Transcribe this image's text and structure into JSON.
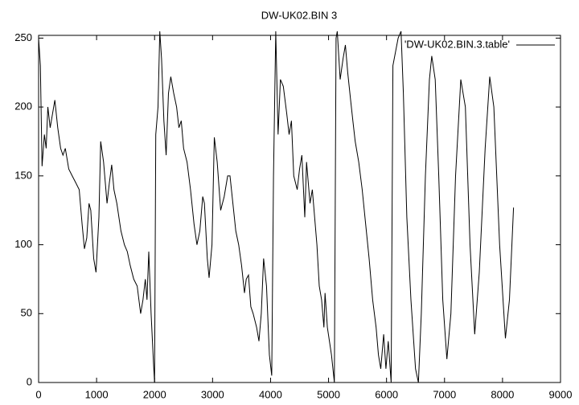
{
  "chart_data": {
    "type": "line",
    "title": "DW-UK02.BIN 3",
    "series": [
      {
        "name": "'DW-UK02.BIN.3.table'",
        "color": "#000000",
        "x": [
          0,
          30,
          60,
          100,
          130,
          160,
          200,
          280,
          330,
          380,
          420,
          460,
          520,
          580,
          640,
          700,
          750,
          790,
          830,
          870,
          900,
          950,
          990,
          1040,
          1070,
          1120,
          1180,
          1220,
          1260,
          1300,
          1350,
          1420,
          1480,
          1530,
          1580,
          1640,
          1700,
          1760,
          1800,
          1840,
          1870,
          1900,
          1940,
          1980,
          2000,
          2020,
          2060,
          2090,
          2120,
          2160,
          2200,
          2240,
          2280,
          2330,
          2380,
          2420,
          2460,
          2500,
          2560,
          2620,
          2680,
          2730,
          2780,
          2830,
          2860,
          2910,
          2940,
          2990,
          3030,
          3080,
          3140,
          3200,
          3260,
          3300,
          3350,
          3400,
          3450,
          3500,
          3550,
          3580,
          3620,
          3660,
          3700,
          3760,
          3800,
          3840,
          3880,
          3930,
          3980,
          4020,
          4050,
          4090,
          4130,
          4170,
          4220,
          4280,
          4320,
          4360,
          4400,
          4460,
          4500,
          4540,
          4590,
          4620,
          4680,
          4720,
          4800,
          4840,
          4880,
          4920,
          4940,
          4980,
          5050,
          5100,
          5130,
          5150,
          5200,
          5250,
          5290,
          5330,
          5380,
          5420,
          5460,
          5520,
          5580,
          5640,
          5700,
          5760,
          5820,
          5860,
          5900,
          5950,
          5990,
          6030,
          6080,
          6110,
          6200,
          6250,
          6290,
          6350,
          6420,
          6500,
          6550,
          6600,
          6670,
          6740,
          6780,
          6840,
          6900,
          6970,
          7040,
          7110,
          7190,
          7280,
          7360,
          7440,
          7520,
          7600,
          7700,
          7780,
          7850,
          7950,
          8050,
          8120,
          8190
        ],
        "values": [
          250,
          230,
          157,
          180,
          170,
          200,
          185,
          205,
          185,
          170,
          165,
          170,
          155,
          150,
          145,
          140,
          115,
          97,
          105,
          130,
          125,
          90,
          80,
          120,
          175,
          160,
          130,
          145,
          158,
          140,
          130,
          110,
          100,
          95,
          85,
          75,
          70,
          50,
          60,
          75,
          60,
          95,
          50,
          15,
          0,
          180,
          200,
          255,
          235,
          190,
          165,
          210,
          222,
          210,
          200,
          185,
          190,
          170,
          160,
          140,
          115,
          100,
          110,
          135,
          130,
          90,
          76,
          100,
          178,
          160,
          125,
          135,
          150,
          150,
          130,
          110,
          100,
          85,
          65,
          75,
          78,
          55,
          50,
          40,
          30,
          50,
          90,
          70,
          20,
          5,
          150,
          255,
          180,
          220,
          215,
          195,
          180,
          190,
          150,
          140,
          155,
          165,
          120,
          160,
          130,
          140,
          100,
          70,
          60,
          40,
          65,
          40,
          20,
          0,
          250,
          255,
          220,
          235,
          245,
          225,
          205,
          190,
          175,
          160,
          140,
          115,
          90,
          60,
          40,
          20,
          10,
          35,
          10,
          30,
          0,
          230,
          250,
          255,
          210,
          120,
          60,
          10,
          0,
          50,
          150,
          220,
          237,
          220,
          150,
          60,
          17,
          50,
          150,
          220,
          200,
          100,
          35,
          80,
          170,
          222,
          200,
          100,
          32,
          60,
          127
        ]
      }
    ],
    "xlim": [
      0,
      9000
    ],
    "xticks": [
      0,
      1000,
      2000,
      3000,
      4000,
      5000,
      6000,
      7000,
      8000,
      9000
    ],
    "ylim": [
      0,
      252
    ],
    "yticks": [
      0,
      50,
      100,
      150,
      200,
      250
    ]
  }
}
